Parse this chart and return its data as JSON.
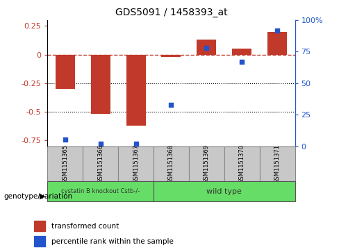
{
  "title": "GDS5091 / 1458393_at",
  "samples": [
    "GSM1151365",
    "GSM1151366",
    "GSM1151367",
    "GSM1151368",
    "GSM1151369",
    "GSM1151370",
    "GSM1151371"
  ],
  "transformed_counts": [
    -0.3,
    -0.52,
    -0.62,
    -0.02,
    0.13,
    0.05,
    0.2
  ],
  "percentile_ranks": [
    5,
    2,
    2,
    33,
    78,
    67,
    92
  ],
  "bar_color": "#c0392b",
  "dot_color": "#2255cc",
  "ylim_left": [
    -0.8,
    0.3
  ],
  "ylim_right": [
    0,
    100
  ],
  "yticks_left": [
    0.25,
    0.0,
    -0.25,
    -0.5,
    -0.75
  ],
  "yticks_right": [
    100,
    75,
    50,
    25,
    0
  ],
  "dotted_lines": [
    -0.25,
    -0.5
  ],
  "group1_samples": [
    0,
    1,
    2
  ],
  "group2_samples": [
    3,
    4,
    5,
    6
  ],
  "group1_label": "cystatin B knockout Cstb-/-",
  "group2_label": "wild type",
  "group_color": "#66dd66",
  "sample_box_color": "#c8c8c8",
  "genotype_label": "genotype/variation",
  "legend_bar_label": "transformed count",
  "legend_dot_label": "percentile rank within the sample",
  "background_color": "#ffffff",
  "bar_width": 0.55
}
